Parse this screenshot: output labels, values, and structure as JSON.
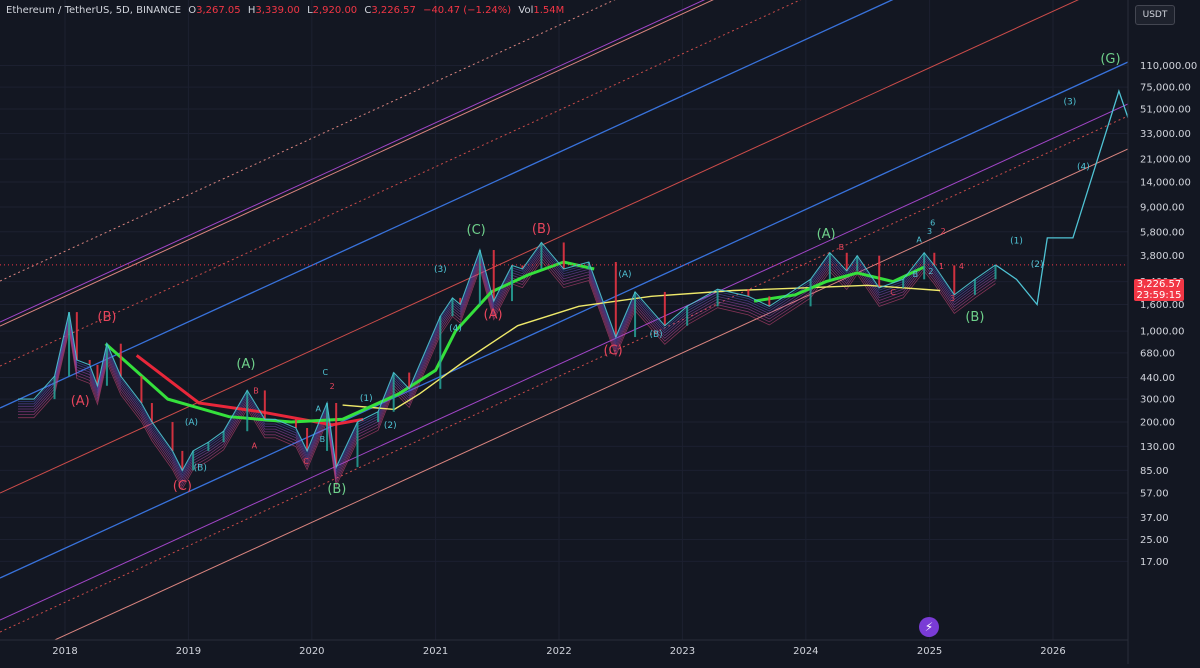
{
  "header": {
    "symbol": "Ethereum / TetherUS, 5D, BINANCE",
    "o_label": "O",
    "o_value": "3,267.05",
    "h_label": "H",
    "h_value": "3,339.00",
    "l_label": "L",
    "l_value": "2,920.00",
    "c_label": "C",
    "c_value": "3,226.57",
    "change": "−40.47 (−1.24%)",
    "vol_label": "Vol",
    "vol_value": "1.54M"
  },
  "currency_button": "USDT",
  "last_price": {
    "price": "3,226.57",
    "countdown": "23:59:15"
  },
  "logo_icon": "tradingview-lightning-icon",
  "colors": {
    "background": "#131722",
    "up": "#26a69a",
    "down": "#f23645",
    "wave_red": "#e8455c",
    "wave_green": "#6fd18b",
    "wave_cyan": "#4fc3d4",
    "channel_blue": "#3d7cf0",
    "channel_red": "#e0524f",
    "channel_purple": "#b04ad8",
    "channel_salmon": "#f0908a",
    "ma_green": "#35e03c",
    "ma_yellow": "#efe96a",
    "ma_red": "#e8273a"
  },
  "chart_data": {
    "type": "line",
    "y_scale": "log",
    "x_ticks": [
      "2018",
      "2019",
      "2020",
      "2021",
      "2022",
      "2023",
      "2024",
      "2025",
      "2026"
    ],
    "y_ticks": [
      "110,000.00",
      "75,000.00",
      "51,000.00",
      "33,000.00",
      "21,000.00",
      "14,000.00",
      "9,000.00",
      "5,800.00",
      "3,800.00",
      "2,400.00",
      "1,600.00",
      "1,000.00",
      "680.00",
      "440.00",
      "300.00",
      "200.00",
      "130.00",
      "85.00",
      "57.00",
      "37.00",
      "25.00",
      "17.00"
    ],
    "series": [
      {
        "values": [
          {
            "x": "2017-08-15",
            "y": 300
          },
          {
            "x": "2017-10-01",
            "y": 300
          },
          {
            "x": "2017-12-01",
            "y": 450
          },
          {
            "x": "2018-01-13",
            "y": 1400
          },
          {
            "x": "2018-02-05",
            "y": 600
          },
          {
            "x": "2018-03-15",
            "y": 550
          },
          {
            "x": "2018-04-07",
            "y": 380
          },
          {
            "x": "2018-05-05",
            "y": 800
          },
          {
            "x": "2018-06-15",
            "y": 450
          },
          {
            "x": "2018-08-15",
            "y": 280
          },
          {
            "x": "2018-09-15",
            "y": 200
          },
          {
            "x": "2018-11-15",
            "y": 120
          },
          {
            "x": "2018-12-14",
            "y": 85
          },
          {
            "x": "2019-01-15",
            "y": 120
          },
          {
            "x": "2019-03-01",
            "y": 140
          },
          {
            "x": "2019-04-15",
            "y": 170
          },
          {
            "x": "2019-06-24",
            "y": 350
          },
          {
            "x": "2019-08-15",
            "y": 210
          },
          {
            "x": "2019-09-15",
            "y": 210
          },
          {
            "x": "2019-11-15",
            "y": 180
          },
          {
            "x": "2019-12-18",
            "y": 120
          },
          {
            "x": "2020-02-15",
            "y": 280
          },
          {
            "x": "2020-03-13",
            "y": 90
          },
          {
            "x": "2020-05-15",
            "y": 200
          },
          {
            "x": "2020-07-15",
            "y": 240
          },
          {
            "x": "2020-08-30",
            "y": 480
          },
          {
            "x": "2020-10-15",
            "y": 360
          },
          {
            "x": "2021-01-15",
            "y": 1300
          },
          {
            "x": "2021-02-20",
            "y": 1800
          },
          {
            "x": "2021-03-15",
            "y": 1600
          },
          {
            "x": "2021-05-12",
            "y": 4200
          },
          {
            "x": "2021-06-22",
            "y": 1700
          },
          {
            "x": "2021-08-15",
            "y": 3200
          },
          {
            "x": "2021-09-15",
            "y": 3000
          },
          {
            "x": "2021-11-10",
            "y": 4800
          },
          {
            "x": "2022-01-15",
            "y": 3000
          },
          {
            "x": "2022-03-30",
            "y": 3400
          },
          {
            "x": "2022-06-18",
            "y": 900
          },
          {
            "x": "2022-08-14",
            "y": 2000
          },
          {
            "x": "2022-11-10",
            "y": 1100
          },
          {
            "x": "2023-01-15",
            "y": 1550
          },
          {
            "x": "2023-04-15",
            "y": 2100
          },
          {
            "x": "2023-07-15",
            "y": 1850
          },
          {
            "x": "2023-09-15",
            "y": 1550
          },
          {
            "x": "2024-01-15",
            "y": 2500
          },
          {
            "x": "2024-03-12",
            "y": 4000
          },
          {
            "x": "2024-05-01",
            "y": 2900
          },
          {
            "x": "2024-06-01",
            "y": 3800
          },
          {
            "x": "2024-08-05",
            "y": 2150
          },
          {
            "x": "2024-10-15",
            "y": 2500
          },
          {
            "x": "2024-12-16",
            "y": 4000
          },
          {
            "x": "2025-01-15",
            "y": 3200
          },
          {
            "x": "2025-03-15",
            "y": 1900
          },
          {
            "x": "2025-05-15",
            "y": 2500
          },
          {
            "x": "2025-07-15",
            "y": 3226.57
          }
        ]
      },
      {
        "values": [
          {
            "x": "2025-07-15",
            "y": 3226.57
          },
          {
            "x": "2025-09-15",
            "y": 2500
          },
          {
            "x": "2025-11-15",
            "y": 1600
          },
          {
            "x": "2025-12-15",
            "y": 5200
          },
          {
            "x": "2026-03-01",
            "y": 5200
          },
          {
            "x": "2026-07-15",
            "y": 70000
          },
          {
            "x": "2026-09-01",
            "y": 30000
          },
          {
            "x": "2027-01-01",
            "y": 115000
          }
        ]
      }
    ],
    "ma_green": [
      {
        "x": "2018-05-01",
        "y": 800
      },
      {
        "x": "2018-11-01",
        "y": 300
      },
      {
        "x": "2019-05-01",
        "y": 220
      },
      {
        "x": "2019-11-01",
        "y": 200
      },
      {
        "x": "2020-04-01",
        "y": 210
      },
      {
        "x": "2020-09-15",
        "y": 330
      },
      {
        "x": "2021-01-01",
        "y": 500
      },
      {
        "x": "2021-03-01",
        "y": 1000
      },
      {
        "x": "2021-06-15",
        "y": 2000
      },
      {
        "x": "2021-10-01",
        "y": 2700
      },
      {
        "x": "2022-01-15",
        "y": 3400
      },
      {
        "x": "2022-04-15",
        "y": 3000
      }
    ],
    "ma_green_2": [
      {
        "x": "2023-08-01",
        "y": 1700
      },
      {
        "x": "2023-12-01",
        "y": 1900
      },
      {
        "x": "2024-03-01",
        "y": 2400
      },
      {
        "x": "2024-06-01",
        "y": 2800
      },
      {
        "x": "2024-09-15",
        "y": 2400
      },
      {
        "x": "2024-12-15",
        "y": 3100
      }
    ],
    "ma_yellow": [
      {
        "x": "2020-04-01",
        "y": 270
      },
      {
        "x": "2020-09-01",
        "y": 250
      },
      {
        "x": "2020-11-15",
        "y": 330
      },
      {
        "x": "2021-04-01",
        "y": 600
      },
      {
        "x": "2021-09-01",
        "y": 1100
      },
      {
        "x": "2022-03-01",
        "y": 1550
      },
      {
        "x": "2022-10-01",
        "y": 1850
      },
      {
        "x": "2023-06-01",
        "y": 2050
      },
      {
        "x": "2024-01-01",
        "y": 2150
      },
      {
        "x": "2024-07-01",
        "y": 2250
      },
      {
        "x": "2025-02-01",
        "y": 2050
      }
    ],
    "ma_red": [
      {
        "x": "2018-08-01",
        "y": 650
      },
      {
        "x": "2019-02-01",
        "y": 280
      },
      {
        "x": "2019-08-01",
        "y": 240
      },
      {
        "x": "2020-03-01",
        "y": 190
      },
      {
        "x": "2020-06-01",
        "y": 210
      }
    ],
    "wave_labels": [
      {
        "text": "(A)",
        "x": "2018-02-15",
        "y": 270,
        "color": "red"
      },
      {
        "text": "(B)",
        "x": "2018-05-05",
        "y": 1200,
        "color": "red"
      },
      {
        "text": "(C)",
        "x": "2018-12-14",
        "y": 60,
        "color": "red"
      },
      {
        "text": "(A)",
        "x": "2019-06-20",
        "y": 520,
        "color": "green"
      },
      {
        "text": "(A)",
        "x": "2019-01-10",
        "y": 190,
        "color": "cyan"
      },
      {
        "text": "(B)",
        "x": "2019-02-05",
        "y": 85,
        "color": "cyan"
      },
      {
        "text": "B",
        "x": "2019-07-20",
        "y": 330,
        "color": "red"
      },
      {
        "text": "A",
        "x": "2019-07-15",
        "y": 125,
        "color": "red"
      },
      {
        "text": "C",
        "x": "2019-12-15",
        "y": 95,
        "color": "red"
      },
      {
        "text": "A",
        "x": "2020-01-20",
        "y": 240,
        "color": "cyan"
      },
      {
        "text": "B",
        "x": "2020-02-01",
        "y": 140,
        "color": "cyan"
      },
      {
        "text": "C",
        "x": "2020-02-10",
        "y": 460,
        "color": "cyan"
      },
      {
        "text": "2",
        "x": "2020-03-01",
        "y": 360,
        "color": "red"
      },
      {
        "text": "(B)",
        "x": "2020-03-15",
        "y": 57,
        "color": "green"
      },
      {
        "text": "(1)",
        "x": "2020-06-10",
        "y": 290,
        "color": "cyan"
      },
      {
        "text": "(2)",
        "x": "2020-08-20",
        "y": 180,
        "color": "cyan"
      },
      {
        "text": "(3)",
        "x": "2021-01-15",
        "y": 2850,
        "color": "cyan"
      },
      {
        "text": "(4)",
        "x": "2021-03-01",
        "y": 1000,
        "color": "cyan"
      },
      {
        "text": "(C)",
        "x": "2021-05-01",
        "y": 5600,
        "color": "green"
      },
      {
        "text": "(A)",
        "x": "2021-06-20",
        "y": 1250,
        "color": "red"
      },
      {
        "text": "(B)",
        "x": "2021-11-10",
        "y": 5700,
        "color": "red"
      },
      {
        "text": "(A)",
        "x": "2022-07-15",
        "y": 2600,
        "color": "cyan"
      },
      {
        "text": "(C)",
        "x": "2022-06-10",
        "y": 660,
        "color": "red"
      },
      {
        "text": "(B)",
        "x": "2022-10-15",
        "y": 900,
        "color": "cyan"
      },
      {
        "text": "(A)",
        "x": "2024-03-01",
        "y": 5200,
        "color": "green"
      },
      {
        "text": "B",
        "x": "2024-04-15",
        "y": 4200,
        "color": "red"
      },
      {
        "text": "A",
        "x": "2024-12-01",
        "y": 4800,
        "color": "cyan"
      },
      {
        "text": "C",
        "x": "2024-09-15",
        "y": 1900,
        "color": "red"
      },
      {
        "text": "6",
        "x": "2025-01-10",
        "y": 6500,
        "color": "cyan"
      },
      {
        "text": "3",
        "x": "2025-01-01",
        "y": 5600,
        "color": "cyan"
      },
      {
        "text": "2",
        "x": "2025-02-10",
        "y": 5600,
        "color": "red"
      },
      {
        "text": "1",
        "x": "2025-02-05",
        "y": 3000,
        "color": "red"
      },
      {
        "text": "4",
        "x": "2025-04-05",
        "y": 3000,
        "color": "red"
      },
      {
        "text": "3",
        "x": "2025-03-10",
        "y": 1700,
        "color": "red"
      },
      {
        "text": "B",
        "x": "2024-11-20",
        "y": 2600,
        "color": "cyan"
      },
      {
        "text": "2",
        "x": "2025-01-05",
        "y": 2750,
        "color": "cyan"
      },
      {
        "text": "(B)",
        "x": "2025-05-15",
        "y": 1200,
        "color": "green"
      },
      {
        "text": "(1)",
        "x": "2025-09-15",
        "y": 4700,
        "color": "cyan"
      },
      {
        "text": "(2)",
        "x": "2025-11-15",
        "y": 3100,
        "color": "cyan"
      },
      {
        "text": "(3)",
        "x": "2026-02-20",
        "y": 55000,
        "color": "cyan"
      },
      {
        "text": "(4)",
        "x": "2026-04-01",
        "y": 17500,
        "color": "cyan"
      },
      {
        "text": "(G)",
        "x": "2026-06-20",
        "y": 115000,
        "color": "green"
      }
    ]
  }
}
